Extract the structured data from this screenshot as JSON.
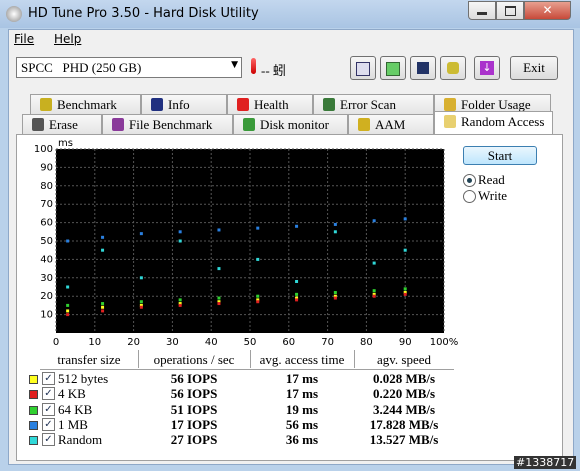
{
  "window": {
    "title": "HD Tune Pro 3.50 - Hard Disk Utility"
  },
  "menu": [
    "File",
    "Help"
  ],
  "toolbar": {
    "drive": "SPCC   PHD (250 GB)",
    "temperature": "-- 蚓",
    "exit": "Exit"
  },
  "tabs": {
    "row1": [
      "Benchmark",
      "Info",
      "Health",
      "Error Scan",
      "Folder Usage"
    ],
    "row2": [
      "Erase",
      "File Benchmark",
      "Disk monitor",
      "AAM",
      "Random Access"
    ]
  },
  "controls": {
    "start": "Start",
    "read": "Read",
    "write": "Write"
  },
  "chart_data": {
    "type": "scatter",
    "y_label": "ms",
    "xlim": [
      0,
      100
    ],
    "ylim": [
      0,
      100
    ],
    "xticks": [
      0,
      10,
      20,
      30,
      40,
      50,
      60,
      70,
      80,
      90,
      {
        "value": 100,
        "label": "100%"
      }
    ],
    "yticks": [
      10,
      20,
      30,
      40,
      50,
      60,
      70,
      80,
      90,
      100
    ],
    "grid": true,
    "x": [
      3,
      12,
      22,
      32,
      42,
      52,
      62,
      72,
      82,
      90
    ],
    "series": [
      {
        "name": "512 bytes",
        "color": "#ffff20",
        "values": [
          12,
          14,
          15,
          16,
          17,
          18,
          19,
          20,
          21,
          22
        ]
      },
      {
        "name": "4 KB",
        "color": "#e02020",
        "values": [
          10,
          12,
          14,
          15,
          16,
          17,
          18,
          19,
          20,
          21
        ]
      },
      {
        "name": "64 KB",
        "color": "#30d030",
        "values": [
          15,
          16,
          17,
          18,
          19,
          20,
          21,
          22,
          23,
          24
        ]
      },
      {
        "name": "1 MB",
        "color": "#2a80e0",
        "values": [
          50,
          52,
          54,
          55,
          56,
          57,
          58,
          59,
          61,
          62
        ]
      },
      {
        "name": "Random",
        "color": "#30d8d8",
        "values": [
          25,
          45,
          30,
          50,
          35,
          40,
          28,
          55,
          38,
          45
        ]
      }
    ]
  },
  "table": {
    "headers": [
      "transfer size",
      "operations / sec",
      "avg. access time",
      "agv. speed"
    ],
    "rows": [
      [
        "56 IOPS",
        "17 ms",
        "0.028 MB/s"
      ],
      [
        "56 IOPS",
        "17 ms",
        "0.220 MB/s"
      ],
      [
        "51 IOPS",
        "19 ms",
        "3.244 MB/s"
      ],
      [
        "17 IOPS",
        "56 ms",
        "17.828 MB/s"
      ],
      [
        "27 IOPS",
        "36 ms",
        "13.527 MB/s"
      ]
    ]
  },
  "watermark": "#1338717"
}
